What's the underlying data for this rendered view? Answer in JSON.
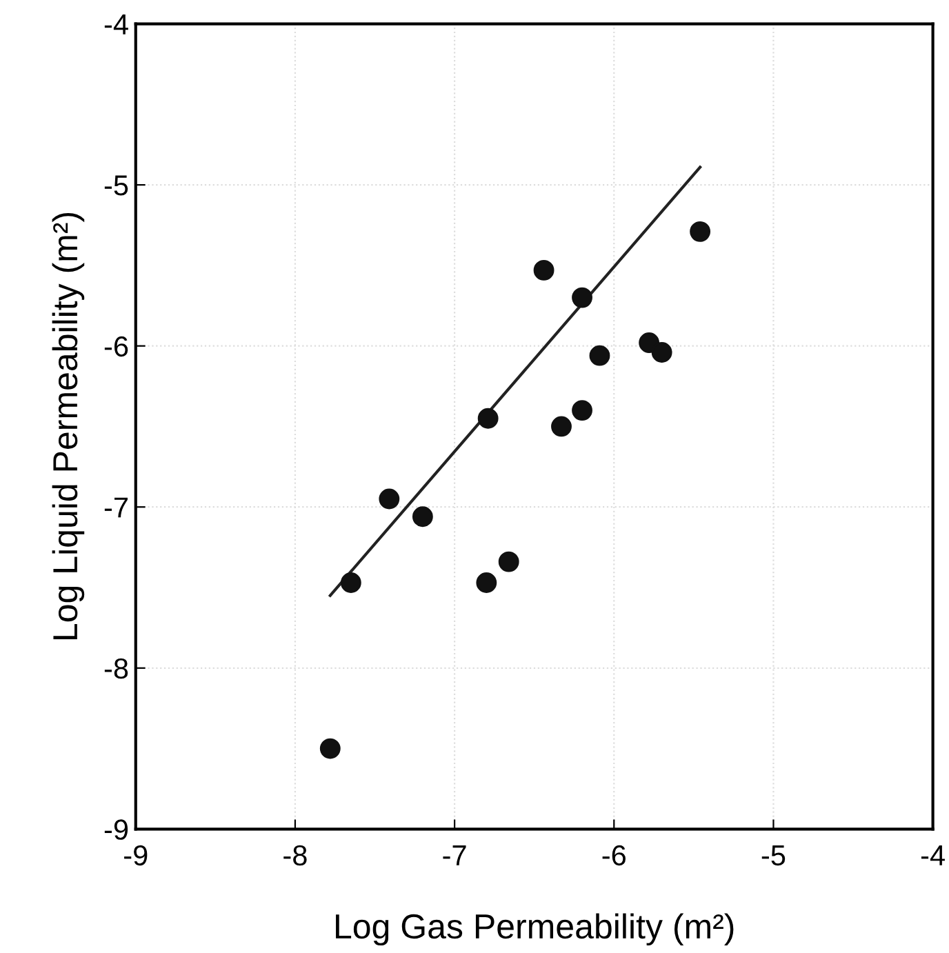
{
  "chart_data": {
    "type": "scatter",
    "xlabel": "Log Gas Permeability (m²)",
    "ylabel": "Log Liquid Permeability (m²)",
    "x": [
      -7.65,
      -7.41,
      -7.2,
      -6.79,
      -6.8,
      -6.66,
      -6.44,
      -6.2,
      -6.33,
      -6.2,
      -6.09,
      -5.78,
      -5.7,
      -5.46,
      -7.78
    ],
    "series": [
      {
        "color": "#111111",
        "marker": "circle",
        "values": [
          -7.47,
          -6.95,
          -7.06,
          -6.45,
          -7.47,
          -7.34,
          -5.53,
          -5.7,
          -6.5,
          -6.4,
          -6.06,
          -5.98,
          -6.04,
          -5.29,
          -8.5
        ]
      },
      {
        "type": "line",
        "color": "#222222",
        "marker": "none",
        "line_style": "solid",
        "x": [
          -7.78,
          -5.46
        ],
        "values": [
          -7.55,
          -4.89
        ]
      }
    ],
    "xlim": [
      -9,
      -4
    ],
    "ylim": [
      -9,
      -4
    ],
    "xticks": [
      -9,
      -8,
      -7,
      -6,
      -5,
      -4
    ],
    "yticks": [
      -9,
      -8,
      -7,
      -6,
      -5,
      -4
    ],
    "grid": true,
    "legend": false
  }
}
